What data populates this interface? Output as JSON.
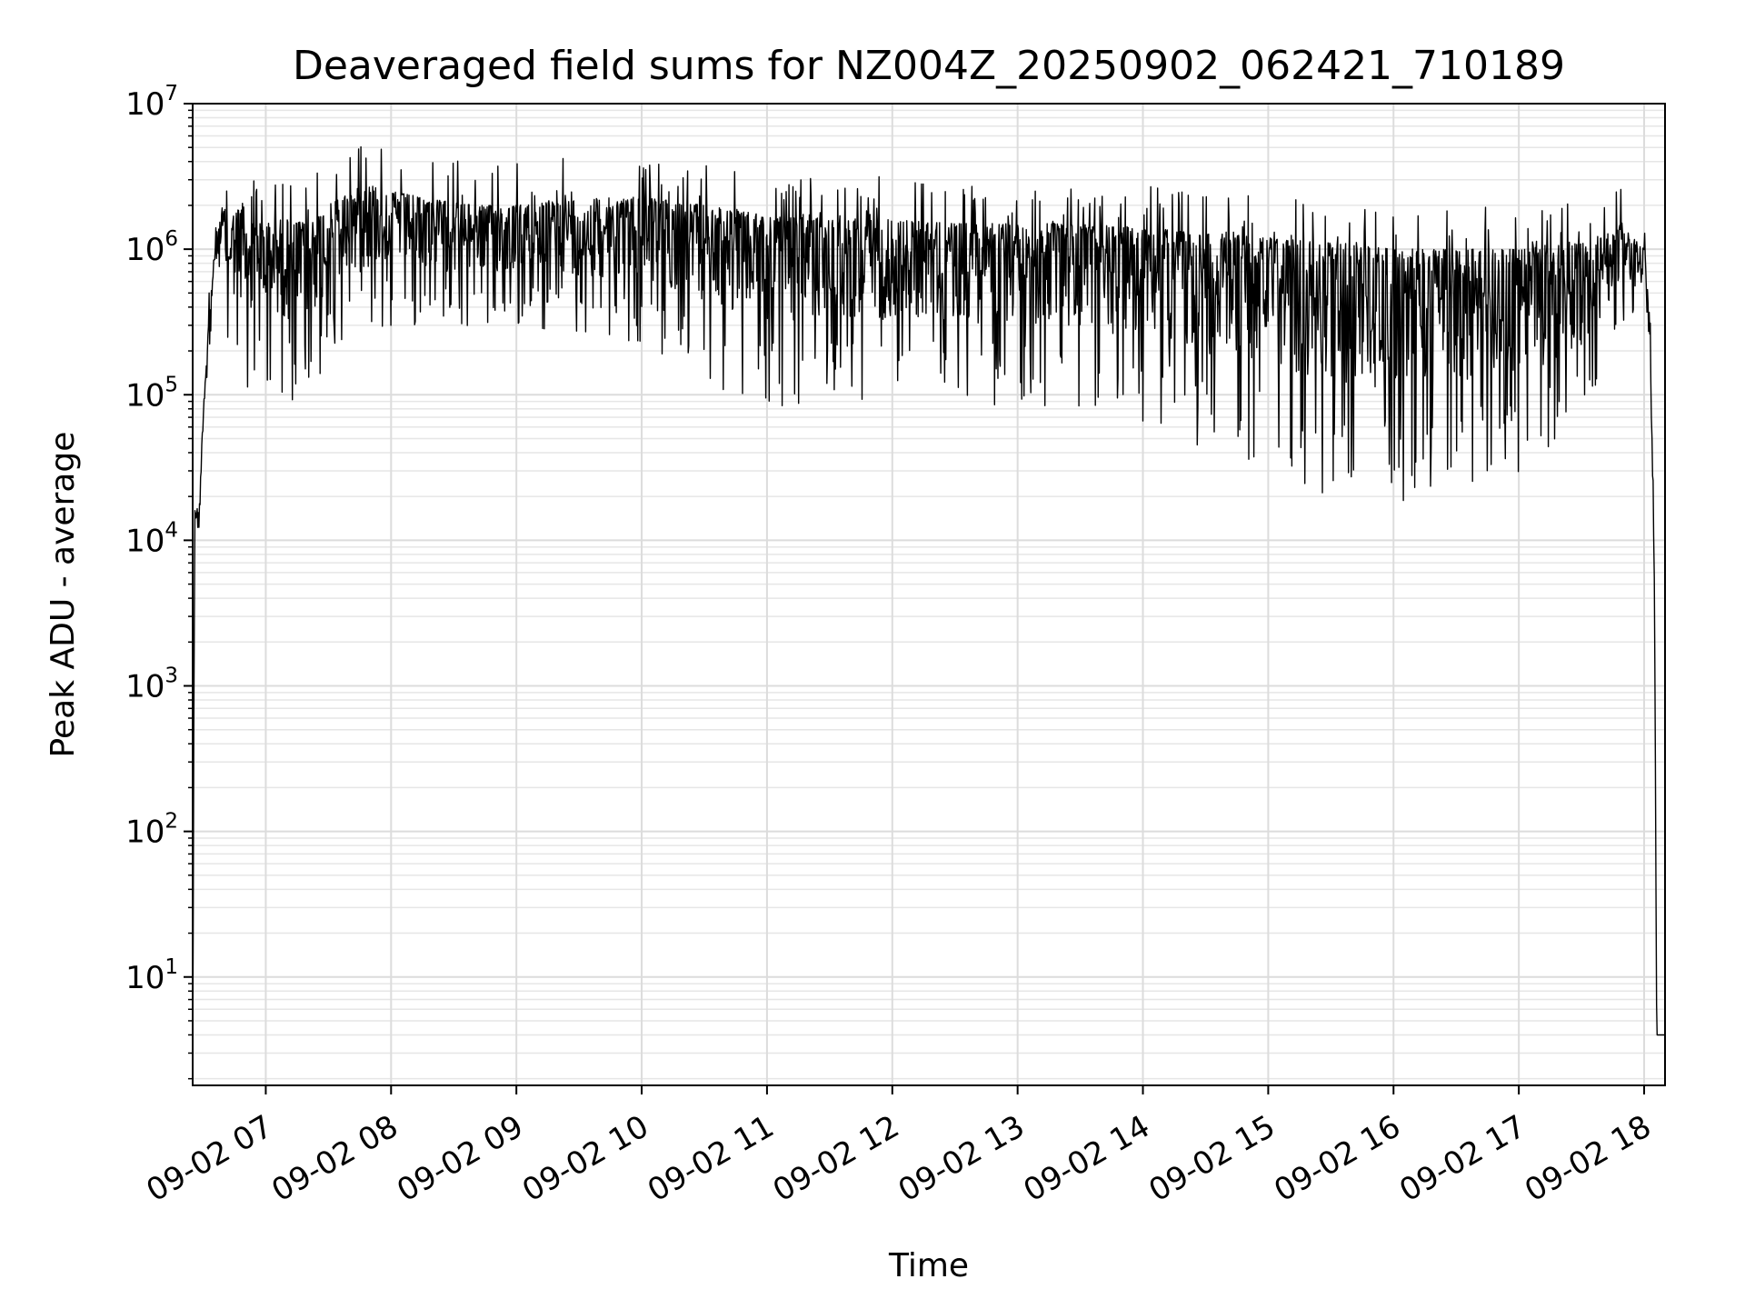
{
  "chart_data": {
    "type": "line",
    "title": "Deaveraged field sums for NZ004Z_20250902_062421_710189",
    "xlabel": "Time",
    "ylabel": "Peak ADU - average",
    "yscale": "log",
    "ylim": [
      1.8,
      10000000
    ],
    "xlim": [
      "2025-09-02 06:25",
      "2025-09-02 18:10"
    ],
    "grid": "major and minor",
    "line_color": "#000000",
    "x_ticks": [
      "09-02 07",
      "09-02 08",
      "09-02 09",
      "09-02 10",
      "09-02 11",
      "09-02 12",
      "09-02 13",
      "09-02 14",
      "09-02 15",
      "09-02 16",
      "09-02 17",
      "09-02 18"
    ],
    "y_ticks": [
      {
        "value": 10,
        "base": "10",
        "exp": "1"
      },
      {
        "value": 100,
        "base": "10",
        "exp": "2"
      },
      {
        "value": 1000,
        "base": "10",
        "exp": "3"
      },
      {
        "value": 10000,
        "base": "10",
        "exp": "4"
      },
      {
        "value": 100000,
        "base": "10",
        "exp": "5"
      },
      {
        "value": 1000000,
        "base": "10",
        "exp": "6"
      },
      {
        "value": 10000000,
        "base": "10",
        "exp": "7"
      }
    ],
    "series": [
      {
        "x": [
          "2025-09-02 06:25",
          "2025-09-02 06:26",
          "2025-09-02 06:28",
          "2025-09-02 06:30",
          "2025-09-02 06:33",
          "2025-09-02 06:36",
          "2025-09-02 06:38",
          "2025-09-02 06:40",
          "2025-09-02 06:42",
          "2025-09-02 06:45",
          "2025-09-02 06:48",
          "2025-09-02 06:50",
          "2025-09-02 06:55",
          "2025-09-02 07:00",
          "2025-09-02 07:05",
          "2025-09-02 07:10",
          "2025-09-02 07:20",
          "2025-09-02 07:30",
          "2025-09-02 07:40",
          "2025-09-02 07:50",
          "2025-09-02 08:00",
          "2025-09-02 08:20",
          "2025-09-02 08:40",
          "2025-09-02 09:00",
          "2025-09-02 09:30",
          "2025-09-02 10:00",
          "2025-09-02 10:30",
          "2025-09-02 11:00",
          "2025-09-02 11:30",
          "2025-09-02 12:00",
          "2025-09-02 12:30",
          "2025-09-02 13:00",
          "2025-09-02 13:30",
          "2025-09-02 14:00",
          "2025-09-02 14:30",
          "2025-09-02 15:00",
          "2025-09-02 15:30",
          "2025-09-02 16:00",
          "2025-09-02 16:30",
          "2025-09-02 17:00",
          "2025-09-02 17:30",
          "2025-09-02 17:50",
          "2025-09-02 18:00",
          "2025-09-02 18:03",
          "2025-09-02 18:05",
          "2025-09-02 18:06",
          "2025-09-02 18:10"
        ],
        "high": [
          2,
          20000,
          15000,
          80000,
          400000,
          1200000,
          1600000,
          2000000,
          1500000,
          1800000,
          2000000,
          1500000,
          1500000,
          1500000,
          1600000,
          1600000,
          1500000,
          2000000,
          2500000,
          2800000,
          2500000,
          2200000,
          2000000,
          2000000,
          2200000,
          2300000,
          2000000,
          1700000,
          1600000,
          1600000,
          1500000,
          1500000,
          1500000,
          1400000,
          1300000,
          1200000,
          1100000,
          1000000,
          1000000,
          1000000,
          1100000,
          1400000,
          1000000,
          300000,
          5000,
          4,
          4
        ],
        "low": [
          2,
          10000,
          8000,
          50000,
          200000,
          600000,
          400000,
          300000,
          200000,
          150000,
          100000,
          100000,
          100000,
          100000,
          100000,
          90000,
          90000,
          150000,
          200000,
          250000,
          300000,
          300000,
          250000,
          300000,
          250000,
          200000,
          120000,
          80000,
          80000,
          90000,
          90000,
          80000,
          70000,
          60000,
          40000,
          30000,
          20000,
          18000,
          20000,
          25000,
          50000,
          300000,
          300000,
          100000,
          3000,
          4,
          4
        ]
      }
    ]
  }
}
